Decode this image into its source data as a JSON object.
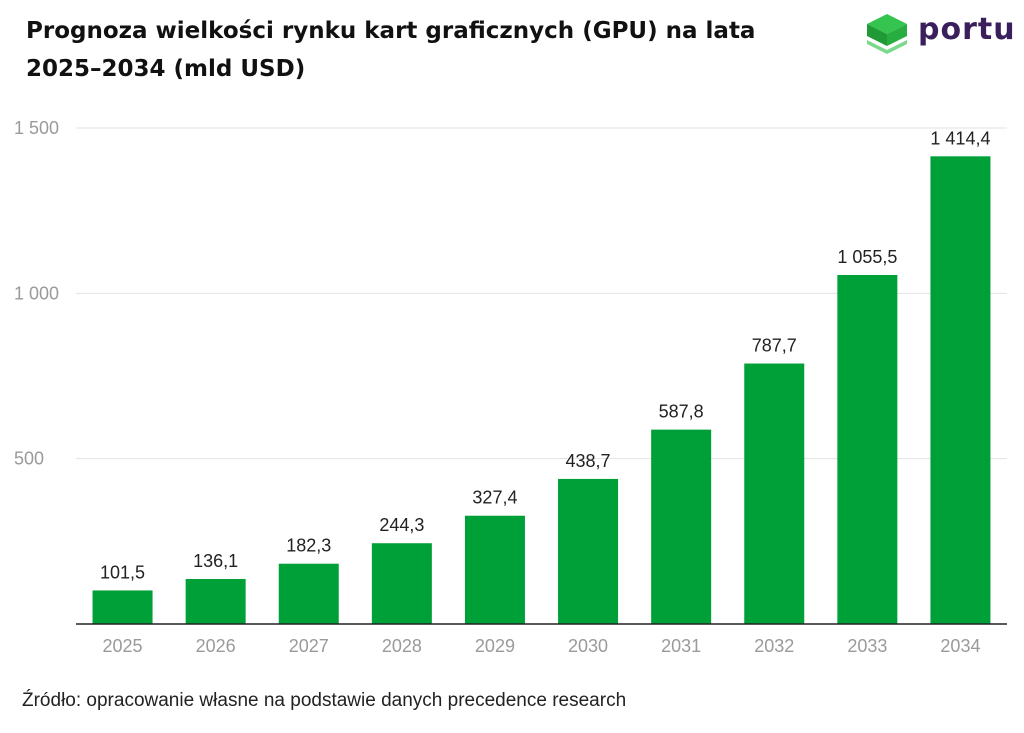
{
  "header": {
    "title": "Prognoza wielkości rynku kart graficznych (GPU) na lata 2025–2034 (mld USD)"
  },
  "logo": {
    "text": "portu",
    "icon": "stacked-layers-icon",
    "icon_color": "#2fbf4a",
    "text_color": "#3a1f5c"
  },
  "footer": {
    "source": "Źródło: opracowanie własne na podstawie danych precedence research"
  },
  "colors": {
    "bar": "#00a039",
    "grid": "#e2e2e2",
    "axis": "#222222",
    "tick_label": "#9a9a9a",
    "data_label": "#222222"
  },
  "chart_data": {
    "type": "bar",
    "categories": [
      "2025",
      "2026",
      "2027",
      "2028",
      "2029",
      "2030",
      "2031",
      "2032",
      "2033",
      "2034"
    ],
    "values": [
      101.5,
      136.1,
      182.3,
      244.3,
      327.4,
      438.7,
      587.8,
      787.7,
      1055.5,
      1414.4
    ],
    "data_labels": [
      "101,5",
      "136,1",
      "182,3",
      "244,3",
      "327,4",
      "438,7",
      "587,8",
      "787,7",
      "1 055,5",
      "1 414,4"
    ],
    "y_ticks": [
      500,
      1000,
      1500
    ],
    "y_tick_labels": [
      "500",
      "1 000",
      "1 500"
    ],
    "ylim": [
      0,
      1500
    ],
    "grid": true,
    "legend": "none"
  }
}
